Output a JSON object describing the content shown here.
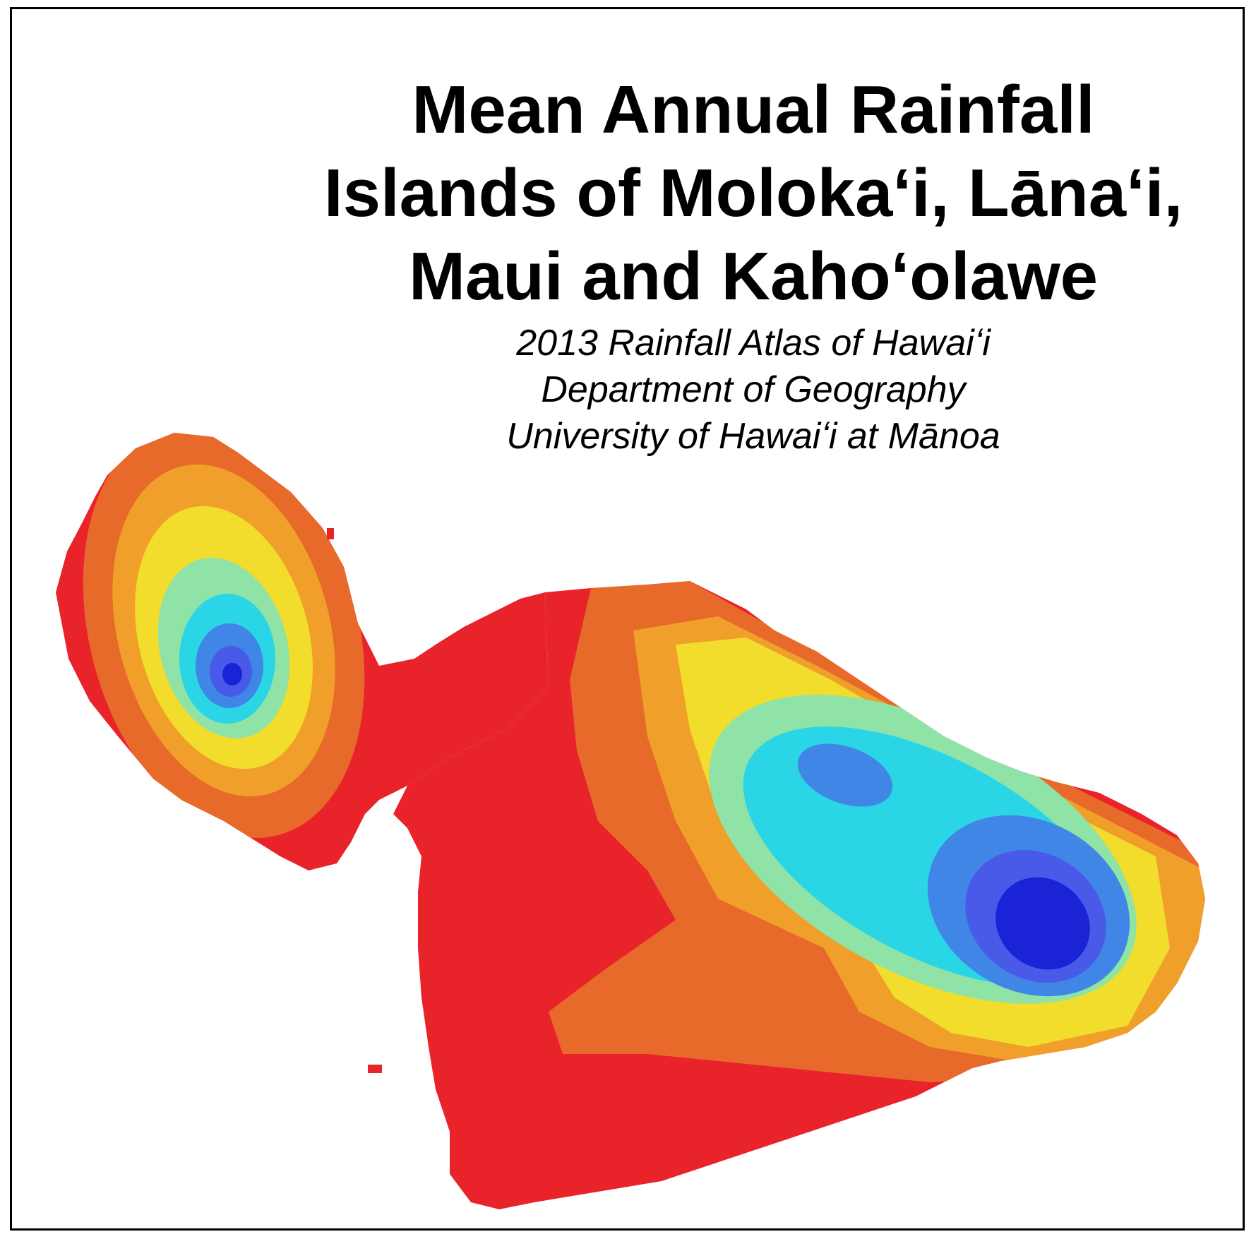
{
  "title": {
    "line1": "Mean Annual Rainfall",
    "line2": "Islands of Molokaʻi, Lānaʻi,",
    "line3": "Maui and Kahoʻolawe"
  },
  "subtitle": {
    "line1": "2013 Rainfall Atlas of Hawaiʻi",
    "line2": "Department of Geography",
    "line3": "University of Hawaiʻi at Mānoa"
  },
  "map": {
    "colors": {
      "driest": "#e8232a",
      "band2": "#e86a2a",
      "band3": "#f0a02a",
      "band4": "#f2dc2c",
      "band5": "#8fe3a6",
      "band6": "#2ad6e6",
      "band7": "#3f86e6",
      "band8": "#4a5ae8",
      "wettest": "#1a23d6"
    }
  }
}
